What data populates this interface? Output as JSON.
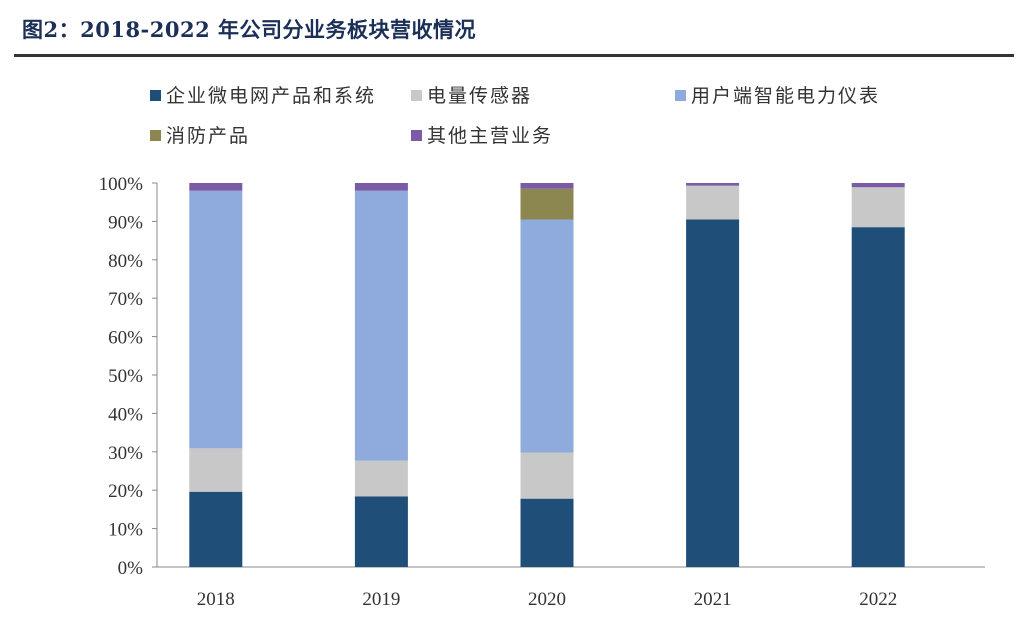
{
  "title": "图2：2018-2022 年公司分业务板块营收情况",
  "chart_data": {
    "type": "bar",
    "stacked": true,
    "percent": true,
    "categories": [
      "2018",
      "2019",
      "2020",
      "2021",
      "2022"
    ],
    "series": [
      {
        "name": "企业微电网产品和系统",
        "color": "#1f4e79",
        "values": [
          19.6,
          18.4,
          17.8,
          90.5,
          88.5
        ]
      },
      {
        "name": "电量传感器",
        "color": "#c8c8c8",
        "values": [
          11.3,
          9.3,
          12.0,
          8.8,
          10.4
        ]
      },
      {
        "name": "用户端智能电力仪表",
        "color": "#8faadc",
        "values": [
          67.1,
          70.3,
          60.7,
          0,
          0
        ]
      },
      {
        "name": "消防产品",
        "color": "#8c8750",
        "values": [
          0,
          0,
          8.0,
          0,
          0
        ]
      },
      {
        "name": "其他主营业务",
        "color": "#7b5aa6",
        "values": [
          2.0,
          2.0,
          1.5,
          0.7,
          1.1
        ]
      }
    ],
    "yticks": [
      "0%",
      "10%",
      "20%",
      "30%",
      "40%",
      "50%",
      "60%",
      "70%",
      "80%",
      "90%",
      "100%"
    ],
    "ylim": [
      0,
      100
    ],
    "grid": false,
    "legend": "top",
    "xlabel": "",
    "ylabel": ""
  }
}
